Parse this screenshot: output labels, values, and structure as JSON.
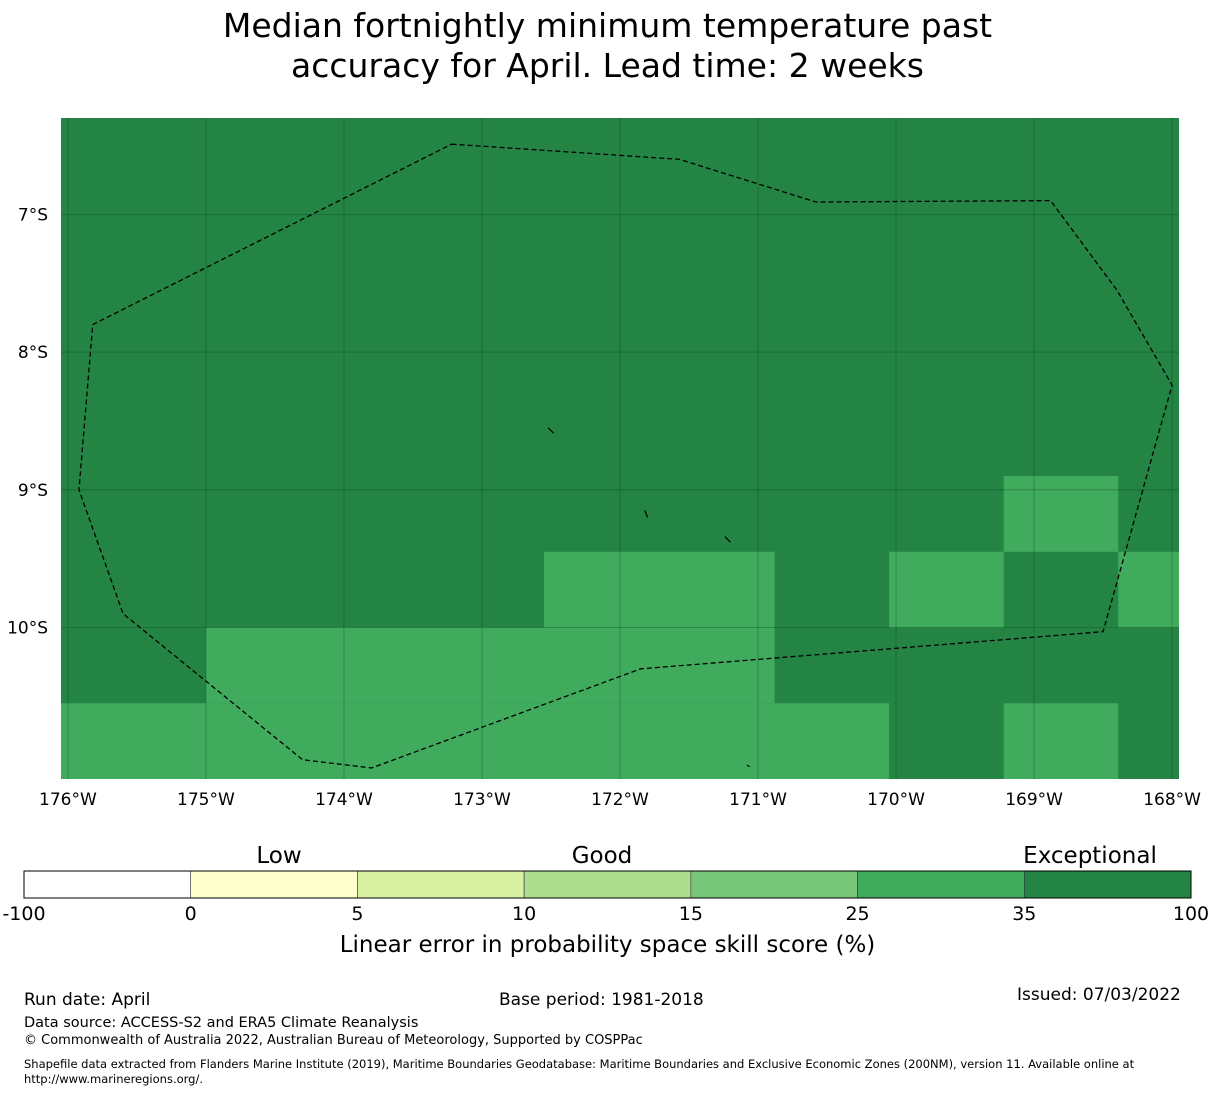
{
  "title": {
    "line1": "Median fortnightly minimum temperature past",
    "line2": "accuracy for April. Lead time: 2 weeks"
  },
  "map": {
    "lon_range": [
      -176.05,
      -167.95
    ],
    "lat_range": [
      -11.1,
      -6.3
    ],
    "lon_ticks": [
      -176,
      -175,
      -174,
      -173,
      -172,
      -171,
      -170,
      -169,
      -168
    ],
    "lon_tick_labels": [
      "176°W",
      "175°W",
      "174°W",
      "173°W",
      "172°W",
      "171°W",
      "170°W",
      "169°W",
      "168°W"
    ],
    "lat_ticks": [
      -7,
      -8,
      -9,
      -10
    ],
    "lat_tick_labels": [
      "7°S",
      "8°S",
      "9°S",
      "10°S"
    ],
    "gridlines": true,
    "colors": {
      "exceptional": "#238443",
      "good_high": "#41ab5d"
    },
    "cells_note_categories": [
      "exceptional",
      "good_high"
    ],
    "cells": [
      {
        "lon0": -176.05,
        "lon1": -167.95,
        "lat0": -10.0,
        "lat1": -6.3,
        "cat": "exceptional"
      },
      {
        "lon0": -176.05,
        "lon1": -167.95,
        "lat0": -11.1,
        "lat1": -10.0,
        "cat": "exceptional"
      },
      {
        "lon0": -172.55,
        "lon1": -170.88,
        "lat0": -10.0,
        "lat1": -9.45,
        "cat": "good_high"
      },
      {
        "lon0": -170.05,
        "lon1": -169.22,
        "lat0": -10.0,
        "lat1": -9.45,
        "cat": "good_high"
      },
      {
        "lon0": -169.22,
        "lon1": -168.39,
        "lat0": -9.45,
        "lat1": -8.9,
        "cat": "good_high"
      },
      {
        "lon0": -168.39,
        "lon1": -167.95,
        "lat0": -10.0,
        "lat1": -9.45,
        "cat": "good_high"
      },
      {
        "lon0": -175.0,
        "lon1": -170.88,
        "lat0": -10.55,
        "lat1": -10.0,
        "cat": "good_high"
      },
      {
        "lon0": -176.05,
        "lon1": -170.05,
        "lat0": -11.1,
        "lat1": -10.55,
        "cat": "good_high"
      },
      {
        "lon0": -169.22,
        "lon1": -168.39,
        "lat0": -11.1,
        "lat1": -10.55,
        "cat": "good_high"
      }
    ],
    "eez_boundary": [
      [
        -173.22,
        -6.49
      ],
      [
        -171.57,
        -6.6
      ],
      [
        -170.58,
        -6.91
      ],
      [
        -168.88,
        -6.9
      ],
      [
        -168.4,
        -7.55
      ],
      [
        -168.0,
        -8.24
      ],
      [
        -168.5,
        -10.03
      ],
      [
        -171.85,
        -10.3
      ],
      [
        -173.8,
        -11.02
      ],
      [
        -174.3,
        -10.96
      ],
      [
        -175.6,
        -9.9
      ],
      [
        -175.92,
        -9.0
      ],
      [
        -175.82,
        -7.8
      ],
      [
        -173.22,
        -6.49
      ]
    ],
    "islands": [
      [
        [
          -172.52,
          -8.55
        ],
        [
          -172.48,
          -8.59
        ]
      ],
      [
        [
          -171.82,
          -9.15
        ],
        [
          -171.8,
          -9.2
        ]
      ],
      [
        [
          -171.24,
          -9.34
        ],
        [
          -171.2,
          -9.38
        ]
      ],
      [
        [
          -171.08,
          -11.0
        ],
        [
          -171.06,
          -11.01
        ]
      ]
    ]
  },
  "colorbar": {
    "categories": [
      {
        "from": -100,
        "to": 0,
        "color": "#ffffff"
      },
      {
        "from": 0,
        "to": 5,
        "color": "#ffffcc"
      },
      {
        "from": 5,
        "to": 10,
        "color": "#d9f0a3"
      },
      {
        "from": 10,
        "to": 15,
        "color": "#addd8e"
      },
      {
        "from": 15,
        "to": 25,
        "color": "#78c679"
      },
      {
        "from": 25,
        "to": 35,
        "color": "#41ab5d"
      },
      {
        "from": 35,
        "to": 100,
        "color": "#238443"
      }
    ],
    "tick_labels": [
      "-100",
      "0",
      "5",
      "10",
      "15",
      "25",
      "35",
      "100"
    ],
    "labels": {
      "low": "Low",
      "good": "Good",
      "exceptional": "Exceptional"
    },
    "caption": "Linear error in probability space skill score (%)"
  },
  "footer": {
    "run_date": "Run date: April",
    "base_period": "Base period: 1981-2018",
    "issued": "Issued: 07/03/2022",
    "data_source": "Data source: ACCESS-S2 and ERA5 Climate Reanalysis",
    "copyright": "© Commonwealth of Australia 2022, Australian Bureau of Meteorology, Supported by COSPPac",
    "shapefile_line1": "Shapefile data extracted from Flanders Marine Institute (2019), Maritime Boundaries Geodatabase: Maritime Boundaries and Exclusive Economic Zones (200NM), version 11. Available online at",
    "shapefile_line2": "http://www.marineregions.org/."
  }
}
